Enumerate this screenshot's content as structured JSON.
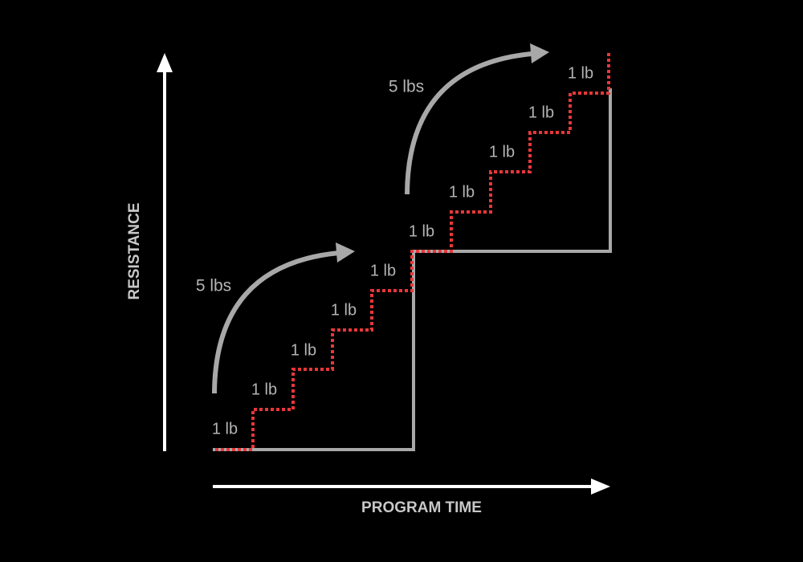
{
  "axes": {
    "y_label": "RESISTANCE",
    "x_label": "PROGRAM TIME"
  },
  "jumps": [
    {
      "label": "5 lbs"
    },
    {
      "label": "5 lbs"
    }
  ],
  "steps": [
    {
      "label": "1 lb"
    },
    {
      "label": "1 lb"
    },
    {
      "label": "1 lb"
    },
    {
      "label": "1 lb"
    },
    {
      "label": "1 lb"
    },
    {
      "label": "1 lb"
    },
    {
      "label": "1 lb"
    },
    {
      "label": "1 lb"
    },
    {
      "label": "1 lb"
    },
    {
      "label": "1 lb"
    }
  ]
}
